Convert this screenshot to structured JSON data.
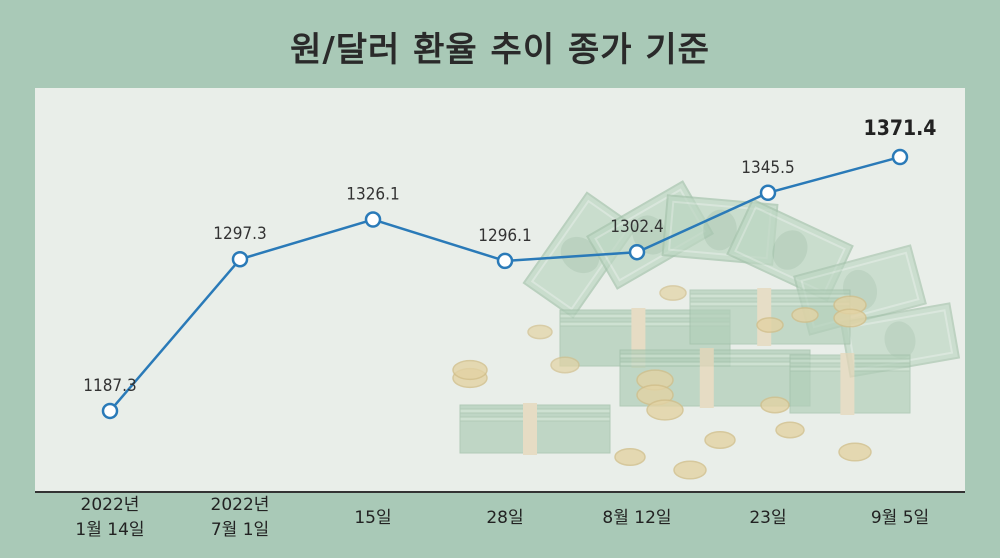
{
  "title": "원/달러 환율 추이 종가 기준",
  "colors": {
    "background": "#a9c9b7",
    "plot_background": "#e9eee9",
    "line": "#2a7ab8",
    "marker_fill": "#ffffff",
    "axis": "#333333",
    "money_green": "#bcd6c2",
    "coin": "#e3d3a4"
  },
  "chart_data": {
    "type": "line",
    "title": "원/달러 환율 추이 종가 기준",
    "xlabel": "",
    "ylabel": "",
    "ylim": [
      1130,
      1420
    ],
    "grid": false,
    "categories": [
      [
        "2022년",
        "1월 14일"
      ],
      [
        "2022년",
        "7월 1일"
      ],
      [
        "15일"
      ],
      [
        "28일"
      ],
      [
        "8월 12일"
      ],
      [
        "23일"
      ],
      [
        "9월 5일"
      ]
    ],
    "values": [
      1187.3,
      1297.3,
      1326.1,
      1296.1,
      1302.4,
      1345.5,
      1371.4
    ],
    "labels": [
      "1187.3",
      "1297.3",
      "1326.1",
      "1296.1",
      "1302.4",
      "1345.5",
      "1371.4"
    ]
  }
}
